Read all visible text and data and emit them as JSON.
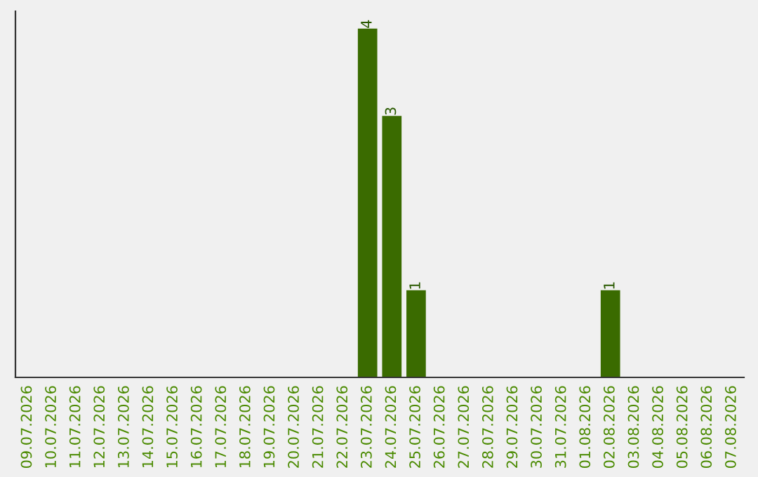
{
  "chart_data": {
    "type": "bar",
    "categories": [
      "09.07.2026",
      "10.07.2026",
      "11.07.2026",
      "12.07.2026",
      "13.07.2026",
      "14.07.2026",
      "15.07.2026",
      "16.07.2026",
      "17.07.2026",
      "18.07.2026",
      "19.07.2026",
      "20.07.2026",
      "21.07.2026",
      "22.07.2026",
      "23.07.2026",
      "24.07.2026",
      "25.07.2026",
      "26.07.2026",
      "27.07.2026",
      "28.07.2026",
      "29.07.2026",
      "30.07.2026",
      "31.07.2026",
      "01.08.2026",
      "02.08.2026",
      "03.08.2026",
      "04.08.2026",
      "05.08.2026",
      "06.08.2026",
      "07.08.2026"
    ],
    "values": [
      null,
      null,
      null,
      null,
      null,
      null,
      null,
      null,
      null,
      null,
      null,
      null,
      null,
      null,
      4,
      3,
      1,
      null,
      null,
      null,
      null,
      null,
      null,
      null,
      1,
      null,
      null,
      null,
      null,
      null
    ],
    "data_labels": true,
    "color": "#3a6b00",
    "ylim": [
      0,
      4.2
    ],
    "tick_labels": "x",
    "grid": false,
    "legend": false
  }
}
